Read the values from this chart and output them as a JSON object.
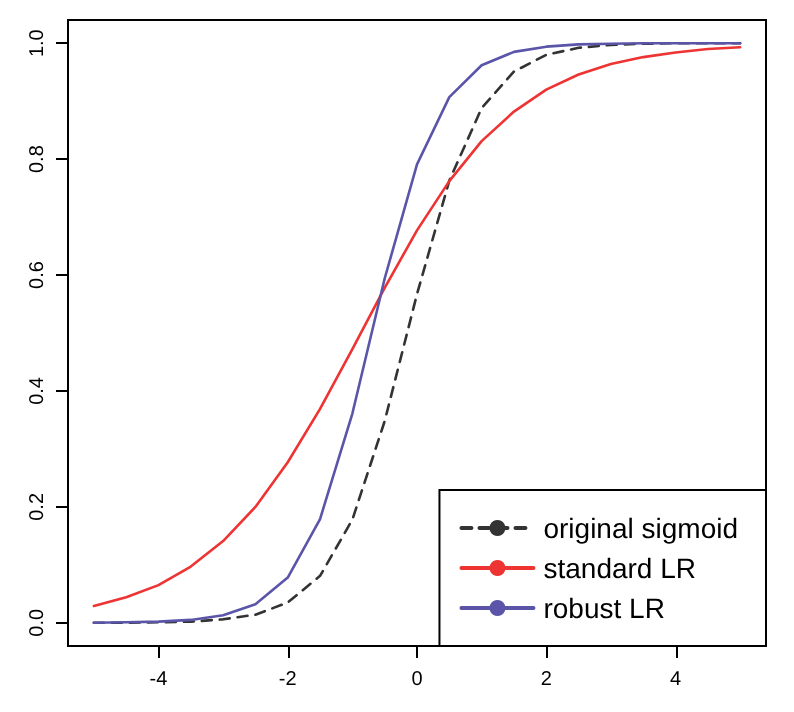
{
  "chart_data": {
    "type": "line",
    "x": [
      -5,
      -4.5,
      -4,
      -3.5,
      -3,
      -2.5,
      -2,
      -1.5,
      -1,
      -0.5,
      0,
      0.5,
      1,
      1.5,
      2,
      2.5,
      3,
      3.5,
      4,
      4.5,
      5
    ],
    "series": [
      {
        "name": "original sigmoid",
        "color": "#333333",
        "line_style": "dashed",
        "values": [
          0,
          0,
          0.001,
          0.002,
          0.006,
          0.014,
          0.035,
          0.081,
          0.178,
          0.348,
          0.567,
          0.763,
          0.888,
          0.951,
          0.98,
          0.992,
          0.997,
          0.999,
          1,
          1,
          1
        ]
      },
      {
        "name": "standard LR",
        "color": "#ee3333",
        "line_style": "solid",
        "values": [
          0.029,
          0.044,
          0.065,
          0.097,
          0.141,
          0.2,
          0.277,
          0.369,
          0.472,
          0.578,
          0.677,
          0.762,
          0.831,
          0.882,
          0.92,
          0.946,
          0.964,
          0.976,
          0.984,
          0.99,
          0.993
        ]
      },
      {
        "name": "robust LR",
        "color": "#5a55a8",
        "line_style": "solid",
        "values": [
          0,
          0.001,
          0.002,
          0.005,
          0.013,
          0.032,
          0.078,
          0.179,
          0.361,
          0.594,
          0.791,
          0.907,
          0.962,
          0.985,
          0.994,
          0.998,
          0.999,
          1,
          1,
          1,
          1
        ]
      }
    ],
    "xlim": [
      -5.4,
      5.4
    ],
    "xticks": [
      -4,
      -2,
      0,
      2,
      4
    ],
    "ylim": [
      -0.04,
      1.04
    ],
    "yticks": [
      {
        "value": 0,
        "label": "0.0"
      },
      0.2,
      0.4,
      0.6,
      0.8,
      {
        "value": 1,
        "label": "1.0"
      }
    ],
    "grid": false,
    "legend": "bottom right",
    "marker": "none"
  }
}
